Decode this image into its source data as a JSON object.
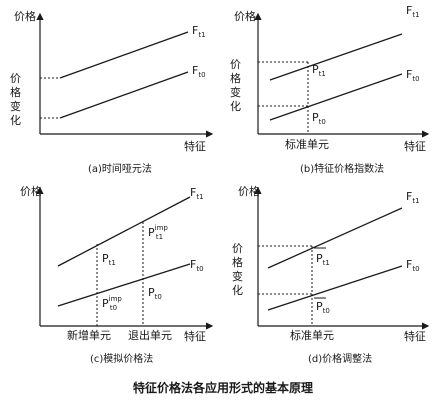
{
  "figure_title": "特征价格法各应用形式的基本原理",
  "panels": [
    {
      "caption": "(a)时间哑元法",
      "y_axis": "价格",
      "y_mid": [
        "价",
        "格",
        "变",
        "化"
      ],
      "x_axis": "特征",
      "line_upper": "F",
      "line_upper_sub": "t1",
      "line_lower": "F",
      "line_lower_sub": "t0"
    },
    {
      "caption": "(b)特征价格指数法",
      "y_axis": "价格",
      "y_mid": [
        "价",
        "格",
        "变",
        "化"
      ],
      "x_axis": "特征",
      "x_marker": "标准单元",
      "line_upper": "F",
      "line_upper_sub": "t1",
      "line_lower": "F",
      "line_lower_sub": "t0",
      "point_upper": "P",
      "point_upper_sub": "t1",
      "point_lower": "P",
      "point_lower_sub": "t0"
    },
    {
      "caption": "(c)模拟价格法",
      "y_axis": "价格",
      "x_axis": "特征",
      "x_marker_left": "新增单元",
      "x_marker_right": "退出单元",
      "line_upper": "F",
      "line_upper_sub": "t1",
      "line_lower": "F",
      "line_lower_sub": "t0",
      "point_a": "P",
      "point_a_sub": "t1",
      "point_b": "P",
      "point_b_sub": "t1",
      "point_b_sup": "imp",
      "point_c": "P",
      "point_c_sub": "t0",
      "point_c_sup": "imp",
      "point_d": "P",
      "point_d_sub": "t0"
    },
    {
      "caption": "(d)价格调整法",
      "y_axis": "价格",
      "y_mid": [
        "价",
        "格",
        "变",
        "化"
      ],
      "x_axis": "特征",
      "x_marker": "标准单元",
      "line_upper": "F",
      "line_upper_sub": "t1",
      "line_lower": "F",
      "line_lower_sub": "t0",
      "point_upper": "P",
      "point_upper_sub": "t1",
      "point_lower": "P",
      "point_lower_sub": "t0"
    }
  ]
}
